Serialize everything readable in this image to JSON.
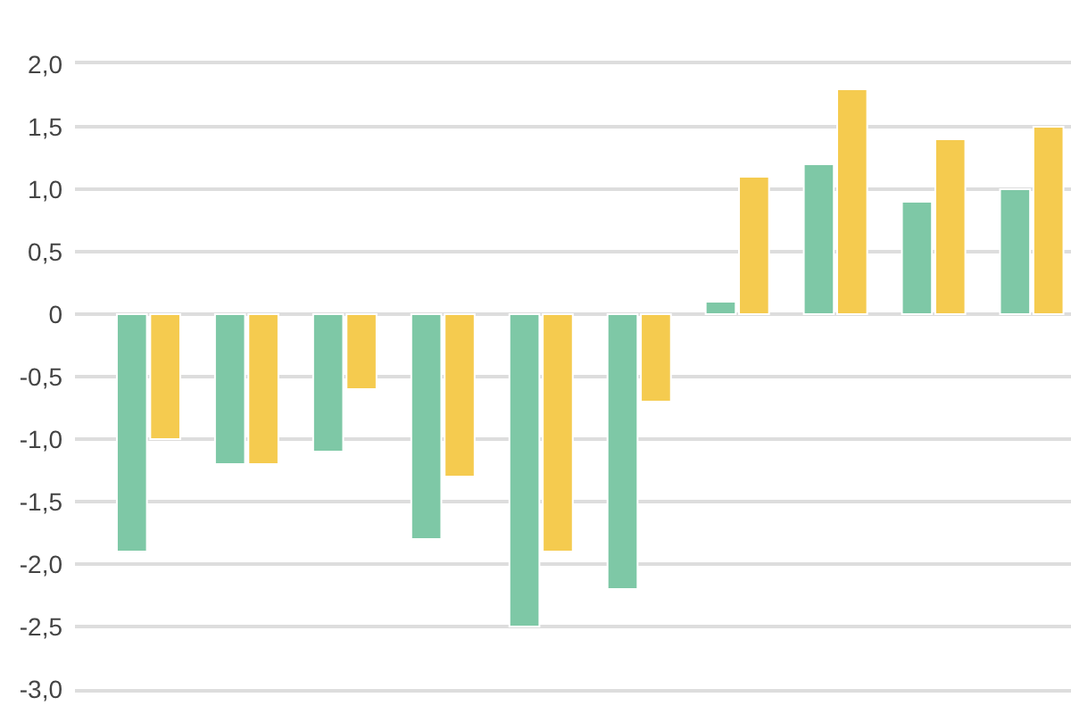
{
  "chart_data": {
    "type": "bar",
    "categories": [
      null,
      null,
      null,
      null,
      null,
      null,
      null,
      null,
      null,
      null
    ],
    "series": [
      {
        "color": "#7ec8a6",
        "values": [
          -1.9,
          -1.2,
          -1.1,
          -1.8,
          -2.5,
          -2.2,
          0.1,
          1.2,
          0.9,
          1.0
        ]
      },
      {
        "color": "#f5cb4f",
        "values": [
          -1.0,
          -1.2,
          -0.6,
          -1.3,
          -1.9,
          -0.7,
          1.1,
          1.8,
          1.4,
          1.5
        ]
      }
    ],
    "ylim": [
      -3,
      2
    ],
    "yticks": [
      {
        "value": -3,
        "label": "-3,0"
      },
      {
        "value": -2.5,
        "label": "-2,5"
      },
      {
        "value": -2,
        "label": "-2,0"
      },
      {
        "value": -1.5,
        "label": "-1,5"
      },
      {
        "value": -1,
        "label": "-1,0"
      },
      {
        "value": -0.5,
        "label": "-0,5"
      },
      0,
      {
        "value": 0.5,
        "label": "0,5"
      },
      {
        "value": 1,
        "label": "1,0"
      },
      {
        "value": 1.5,
        "label": "1,5"
      },
      {
        "value": 2,
        "label": "2,0"
      }
    ],
    "grid": "y",
    "tick_labels": "y"
  }
}
